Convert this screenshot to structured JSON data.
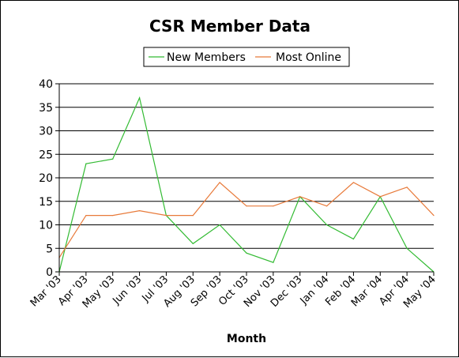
{
  "chart_data": {
    "type": "line",
    "title": "CSR Member Data",
    "xlabel": "Month",
    "ylabel": "",
    "ylim": [
      0,
      40
    ],
    "yticks": [
      0,
      5,
      10,
      15,
      20,
      25,
      30,
      35,
      40
    ],
    "grid": true,
    "legend_position": "top",
    "categories": [
      "Mar '03",
      "Apr '03",
      "May '03",
      "Jun '03",
      "Jul '03",
      "Aug '03",
      "Sep '03",
      "Oct '03",
      "Nov '03",
      "Dec '03",
      "Jan '04",
      "Feb '04",
      "Mar '04",
      "Apr '04",
      "May '04"
    ],
    "series": [
      {
        "name": "New Members",
        "color": "#33bb33",
        "values": [
          0,
          23,
          24,
          37,
          12,
          6,
          10,
          4,
          2,
          16,
          10,
          7,
          16,
          5,
          0
        ]
      },
      {
        "name": "Most Online",
        "color": "#e87a3a",
        "values": [
          3,
          12,
          12,
          13,
          12,
          12,
          19,
          14,
          14,
          16,
          14,
          19,
          16,
          18,
          12
        ]
      }
    ]
  }
}
